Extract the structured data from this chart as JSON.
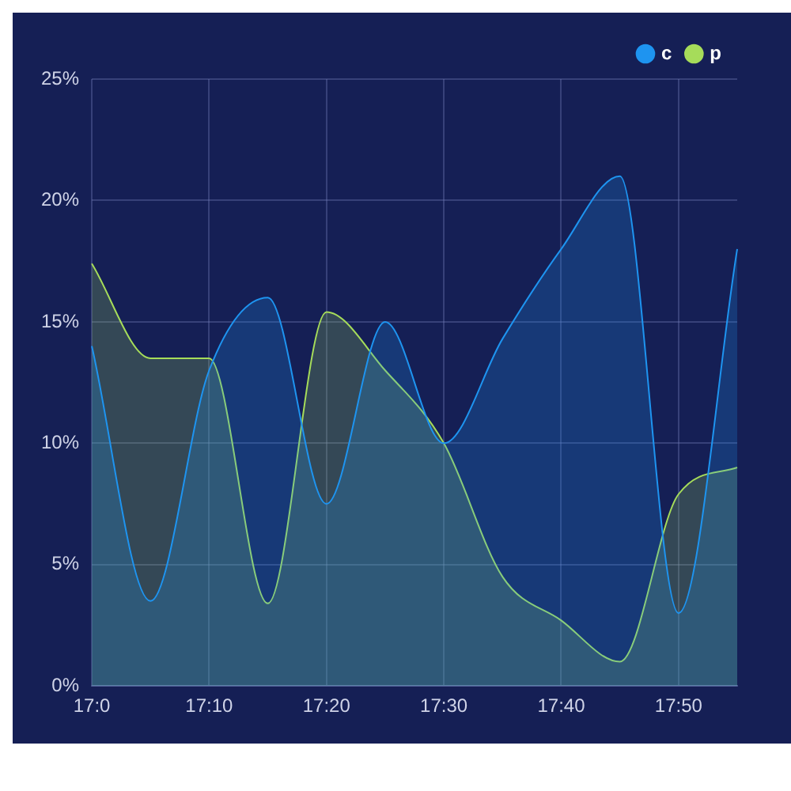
{
  "chart_data": {
    "type": "area",
    "categories": [
      "17:0",
      null,
      "17:10",
      null,
      "17:20",
      null,
      "17:30",
      null,
      "17:40",
      null,
      "17:50",
      null
    ],
    "series": [
      {
        "name": "c",
        "color": "#1e94f0",
        "values": [
          14,
          3.5,
          13,
          16,
          7.5,
          15,
          10,
          14.3,
          18,
          21,
          3,
          18
        ]
      },
      {
        "name": "p",
        "color": "#a6dc5a",
        "values": [
          17.4,
          13.5,
          13.5,
          3.4,
          15.4,
          13,
          10,
          4.5,
          2.7,
          1,
          7.9,
          9
        ]
      }
    ],
    "ylim": [
      0,
      25
    ],
    "yticks": [
      {
        "value": 0,
        "label": "0%"
      },
      {
        "value": 5,
        "label": "5%"
      },
      {
        "value": 10,
        "label": "10%"
      },
      {
        "value": 15,
        "label": "15%"
      },
      {
        "value": 20,
        "label": "20%"
      },
      {
        "value": 25,
        "label": "25%"
      }
    ],
    "grid": true,
    "legend": "top right",
    "marker": "none"
  }
}
